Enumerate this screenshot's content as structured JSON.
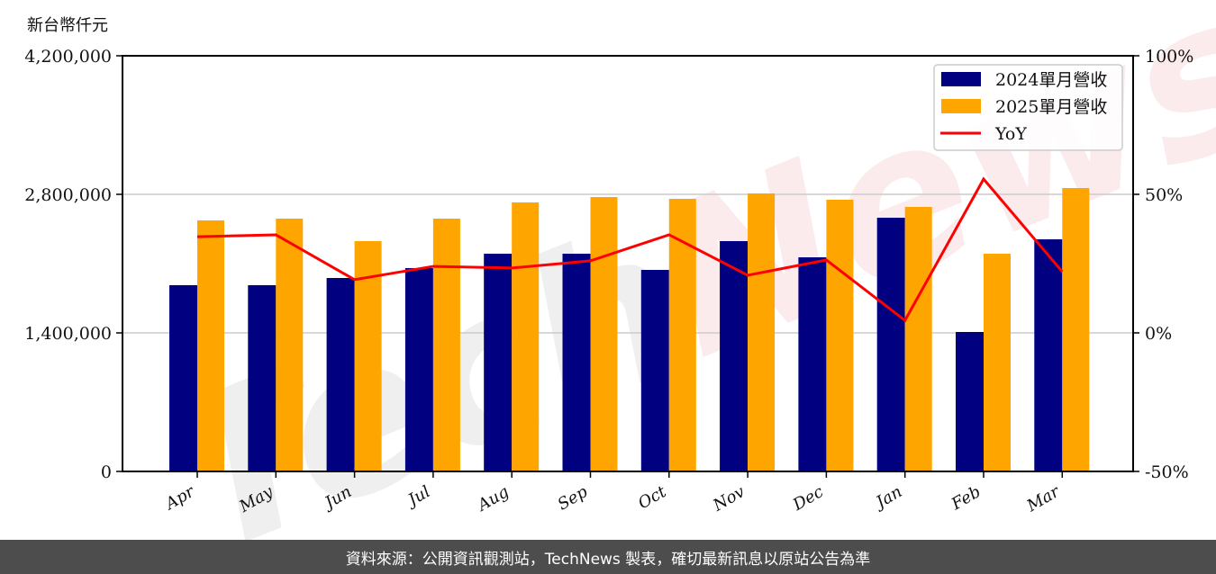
{
  "chart_data": {
    "type": "bar",
    "title": "",
    "ylabel": "新台幣仟元",
    "y2label": "",
    "xlabel": "",
    "categories": [
      "Apr",
      "May",
      "Jun",
      "Jul",
      "Aug",
      "Sep",
      "Oct",
      "Nov",
      "Dec",
      "Jan",
      "Feb",
      "Mar"
    ],
    "series": [
      {
        "name": "2024單月營收",
        "type": "bar",
        "color": "#000080",
        "values": [
          1881800,
          1881800,
          1954600,
          2054600,
          2200000,
          2200000,
          2036400,
          2327300,
          2163600,
          2563600,
          1409100,
          2345500
        ]
      },
      {
        "name": "2025單月營收",
        "type": "bar",
        "color": "#FFA500",
        "values": [
          2536400,
          2554500,
          2327300,
          2554500,
          2718200,
          2772700,
          2754500,
          2809100,
          2745500,
          2672700,
          2200000,
          2863600
        ]
      },
      {
        "name": "YoY",
        "type": "line",
        "axis": "right",
        "color": "#FF0000",
        "values": [
          34.7,
          35.4,
          19.2,
          24.0,
          23.4,
          26.0,
          35.4,
          20.8,
          26.3,
          4.5,
          55.5,
          22.1
        ]
      }
    ],
    "ylim": [
      0,
      4200000
    ],
    "y_ticks": [
      "0",
      "1,400,000",
      "2,800,000",
      "4,200,000"
    ],
    "y_tick_values": [
      0,
      1400000,
      2800000,
      4200000
    ],
    "y2lim": [
      -50,
      100
    ],
    "y2_ticks": [
      "-50%",
      "0%",
      "50%",
      "100%"
    ],
    "y2_tick_values": [
      -50,
      0,
      50,
      100
    ],
    "grid": "horizontal",
    "legend_position": "upper right",
    "watermark": "TechNews"
  },
  "unit_label": "新台幣仟元",
  "legend": {
    "items": [
      {
        "label": "2024單月營收",
        "color": "#000080",
        "kind": "bar"
      },
      {
        "label": "2025單月營收",
        "color": "#FFA500",
        "kind": "bar"
      },
      {
        "label": "YoY",
        "color": "#FF0000",
        "kind": "line"
      }
    ]
  },
  "footer": {
    "text": "資料來源：公開資訊觀測站，TechNews 製表，確切最新訊息以原站公告為準"
  }
}
